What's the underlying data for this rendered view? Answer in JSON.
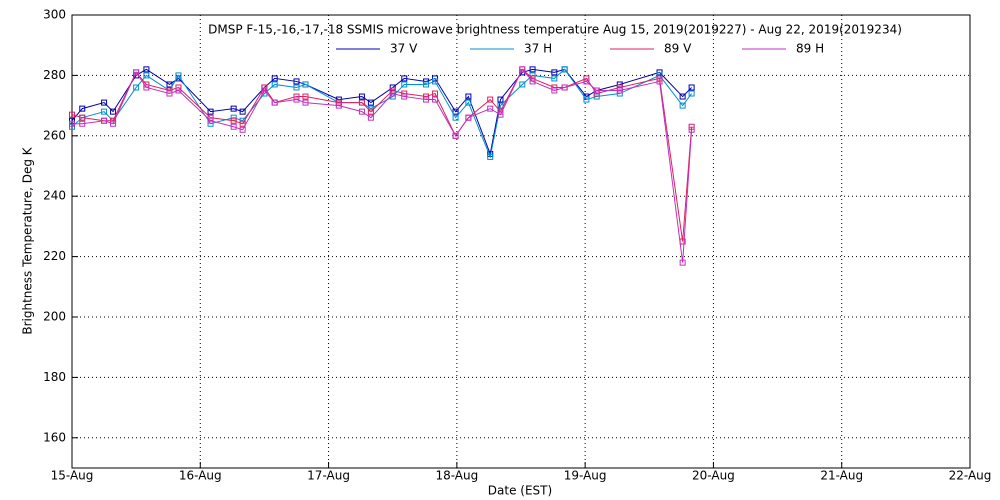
{
  "chart_data": {
    "type": "line",
    "title": "DMSP F-15,-16,-17,-18 SSMIS microwave brightness temperature Aug 15, 2019(2019227) - Aug 22, 2019(2019234)",
    "x_label": "Date (EST)",
    "y_label": "Brightness Temperature, Deg K",
    "x": [
      15.0,
      15.08,
      15.25,
      15.32,
      15.5,
      15.58,
      15.76,
      15.83,
      16.08,
      16.26,
      16.33,
      16.5,
      16.58,
      16.75,
      16.82,
      17.08,
      17.26,
      17.33,
      17.5,
      17.59,
      17.76,
      17.83,
      17.99,
      18.09,
      18.26,
      18.34,
      18.51,
      18.59,
      18.76,
      18.84,
      19.01,
      19.09,
      19.27,
      19.58,
      19.76,
      19.83
    ],
    "series": [
      {
        "name": "37 V",
        "color": "#0000b0",
        "values": [
          265,
          269,
          271,
          268,
          280,
          282,
          277,
          279,
          268,
          269,
          268,
          276,
          279,
          278,
          277,
          272,
          273,
          271,
          276,
          279,
          278,
          279,
          268,
          273,
          254,
          272,
          281,
          282,
          281,
          282,
          273,
          275,
          277,
          281,
          273,
          276
        ]
      },
      {
        "name": "37 H",
        "color": "#0090d0",
        "values": [
          263,
          266,
          268,
          265,
          276,
          280,
          275,
          280,
          264,
          266,
          265,
          274,
          277,
          276,
          277,
          271,
          271,
          269,
          273,
          277,
          277,
          278,
          266,
          271,
          253,
          270,
          277,
          280,
          279,
          282,
          272,
          273,
          274,
          280,
          270,
          274
        ]
      },
      {
        "name": "89 V",
        "color": "#e0205a",
        "values": [
          267,
          266,
          265,
          265,
          281,
          277,
          275,
          276,
          266,
          265,
          264,
          276,
          271,
          273,
          273,
          271,
          271,
          268,
          275,
          274,
          273,
          274,
          260,
          266,
          272,
          268,
          282,
          279,
          276,
          276,
          279,
          274,
          276,
          279,
          225,
          263
        ]
      },
      {
        "name": "89 H",
        "color": "#c030c0",
        "values": [
          264,
          264,
          265,
          264,
          281,
          276,
          274,
          275,
          265,
          263,
          262,
          275,
          271,
          272,
          271,
          270,
          268,
          266,
          274,
          273,
          272,
          272,
          260,
          266,
          269,
          267,
          282,
          278,
          275,
          276,
          278,
          275,
          275,
          278,
          218,
          262
        ]
      }
    ],
    "xlim": [
      15,
      22
    ],
    "xticks": [
      {
        "value": 15,
        "label": "15-Aug"
      },
      {
        "value": 16,
        "label": "16-Aug"
      },
      {
        "value": 17,
        "label": "17-Aug"
      },
      {
        "value": 18,
        "label": "18-Aug"
      },
      {
        "value": 19,
        "label": "19-Aug"
      },
      {
        "value": 20,
        "label": "20-Aug"
      },
      {
        "value": 21,
        "label": "21-Aug"
      },
      {
        "value": 22,
        "label": "22-Aug"
      }
    ],
    "ylim": [
      150,
      300
    ],
    "yticks": [
      160,
      180,
      200,
      220,
      240,
      260,
      280,
      300
    ],
    "grid": true
  }
}
